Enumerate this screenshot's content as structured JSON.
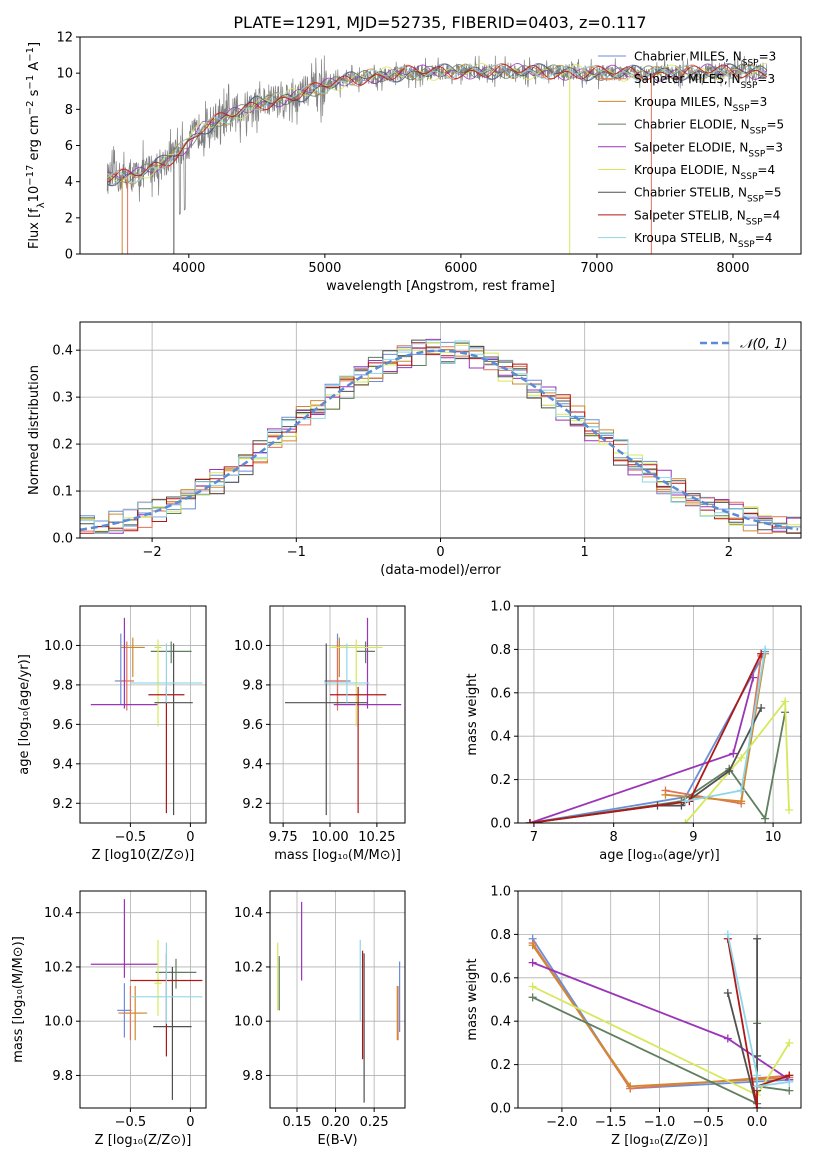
{
  "figure": {
    "title": "PLATE=1291, MJD=52735, FIBERID=0403, z=0.117"
  },
  "models": [
    {
      "name": "Chabrier MILES, N_SSP=3",
      "base": "Chabrier MILES, N",
      "sub": "SSP",
      "tail": "=3",
      "color": "#6b8ed8"
    },
    {
      "name": "Salpeter MILES, N_SSP=3",
      "base": "Salpeter MILES, N",
      "sub": "SSP",
      "tail": "=3",
      "color": "#e2725b"
    },
    {
      "name": "Kroupa MILES, N_SSP=3",
      "base": "Kroupa MILES, N",
      "sub": "SSP",
      "tail": "=3",
      "color": "#cf8a2e"
    },
    {
      "name": "Chabrier ELODIE, N_SSP=5",
      "base": "Chabrier ELODIE, N",
      "sub": "SSP",
      "tail": "=5",
      "color": "#5f7f5f"
    },
    {
      "name": "Salpeter ELODIE, N_SSP=3",
      "base": "Salpeter ELODIE, N",
      "sub": "SSP",
      "tail": "=3",
      "color": "#9b35b8"
    },
    {
      "name": "Kroupa ELODIE, N_SSP=4",
      "base": "Kroupa ELODIE, N",
      "sub": "SSP",
      "tail": "=4",
      "color": "#d6e85a"
    },
    {
      "name": "Chabrier STELIB, N_SSP=5",
      "base": "Chabrier STELIB, N",
      "sub": "SSP",
      "tail": "=5",
      "color": "#505050"
    },
    {
      "name": "Salpeter STELIB, N_SSP=4",
      "base": "Salpeter STELIB, N",
      "sub": "SSP",
      "tail": "=4",
      "color": "#b01818"
    },
    {
      "name": "Kroupa STELIB, N_SSP=4",
      "base": "Kroupa STELIB, N",
      "sub": "SSP",
      "tail": "=4",
      "color": "#8fd6e6"
    }
  ],
  "chart_data": [
    {
      "type": "line",
      "id": "spectrum",
      "xlabel": "wavelength [Angstrom, rest frame]",
      "ylabel_base": "Flux [f",
      "ylabel_sub": "λ",
      "ylabel_mid": "10",
      "ylabel_sup1": "−17",
      "ylabel_end": " erg cm",
      "ylabel_sup2": "−2",
      "ylabel_end2": " s",
      "ylabel_sup3": "−1",
      "ylabel_end3": " A",
      "ylabel_sup4": "−1",
      "ylabel_close": "]",
      "xlim": [
        3200,
        8500
      ],
      "ylim": [
        0,
        12
      ],
      "xticks": [
        4000,
        5000,
        6000,
        7000,
        8000
      ],
      "yticks": [
        0,
        2,
        4,
        6,
        8,
        10,
        12
      ],
      "data_color": "#808080",
      "continuum": [
        [
          3400,
          4.2
        ],
        [
          3600,
          4.3
        ],
        [
          3800,
          5.0
        ],
        [
          3950,
          5.8
        ],
        [
          4100,
          7.0
        ],
        [
          4300,
          7.6
        ],
        [
          4500,
          8.3
        ],
        [
          4700,
          8.6
        ],
        [
          4900,
          9.0
        ],
        [
          5100,
          9.5
        ],
        [
          5300,
          9.8
        ],
        [
          5600,
          10.0
        ],
        [
          6000,
          10.1
        ],
        [
          6500,
          10.1
        ],
        [
          7000,
          10.0
        ],
        [
          7500,
          10.0
        ],
        [
          8000,
          10.1
        ],
        [
          8250,
          10.1
        ]
      ],
      "grid": false,
      "legend": "upper right"
    },
    {
      "type": "bar",
      "id": "residuals",
      "xlabel": "(data-model)/error",
      "ylabel": "Normed distribution",
      "xlim": [
        -2.5,
        2.5
      ],
      "ylim": [
        0,
        0.46
      ],
      "xticks": [
        -2,
        -1,
        0,
        1,
        2
      ],
      "yticks": [
        0.0,
        0.1,
        0.2,
        0.3,
        0.4
      ],
      "legend_label": "𝒩(0, 1)",
      "gaussian": {
        "mean": 0,
        "sigma": 1,
        "color": "#5b8bd6"
      },
      "grid": true,
      "legend": "upper right"
    },
    {
      "type": "scatter",
      "id": "age-vs-z",
      "xlabel_base": "Z [log",
      "xlabel_sub": "10",
      "xlabel_end": "(Z/Z",
      "xlabel_sub2": "⊙",
      "xlabel_close": ")]",
      "ylabel": "age  [log₁₀(age/yr)]",
      "xlim": [
        -0.92,
        0.13
      ],
      "ylim": [
        9.1,
        10.2
      ],
      "xticks": [
        -0.5,
        0.0
      ],
      "yticks": [
        9.2,
        9.4,
        9.6,
        9.8,
        10.0
      ],
      "points": [
        {
          "x": -0.58,
          "y": 9.82,
          "xerr": 0.05,
          "yerr_lo": 0.12,
          "yerr_hi": 0.24
        },
        {
          "x": -0.53,
          "y": 9.82,
          "xerr": 0.06,
          "yerr_lo": 0.15,
          "yerr_hi": 0.2
        },
        {
          "x": -0.48,
          "y": 9.99,
          "xerr": 0.1,
          "yerr_lo": 0.15,
          "yerr_hi": 0.05
        },
        {
          "x": -0.16,
          "y": 9.97,
          "xerr": 0.17,
          "yerr_lo": 0.06,
          "yerr_hi": 0.05
        },
        {
          "x": -0.55,
          "y": 9.7,
          "xerr": 0.28,
          "yerr_lo": 0.02,
          "yerr_hi": 0.44
        },
        {
          "x": -0.27,
          "y": 9.99,
          "xerr": 0.03,
          "yerr_lo": 0.4,
          "yerr_hi": 0.04
        },
        {
          "x": -0.14,
          "y": 9.71,
          "xerr": 0.16,
          "yerr_lo": 0.57,
          "yerr_hi": 0.3
        },
        {
          "x": -0.2,
          "y": 9.75,
          "xerr": 0.15,
          "yerr_lo": 0.6,
          "yerr_hi": 0.04
        },
        {
          "x": -0.2,
          "y": 9.81,
          "xerr": 0.3,
          "yerr_lo": 0.1,
          "yerr_hi": 0.2
        }
      ]
    },
    {
      "type": "scatter",
      "id": "age-vs-mass",
      "xlabel": "mass [log₁₀(M/M⊙)]",
      "ylabel": "",
      "xlim": [
        9.68,
        10.4
      ],
      "ylim": [
        9.1,
        10.2
      ],
      "xticks": [
        9.75,
        10.0,
        10.25
      ],
      "xticklabels": [
        "9.75",
        "10.00",
        "10.25"
      ],
      "yticks": [
        9.2,
        9.4,
        9.6,
        9.8,
        10.0
      ],
      "points": [
        {
          "x": 10.04,
          "y": 9.82,
          "xerr": 0.07,
          "yerr_lo": 0.12,
          "yerr_hi": 0.24
        },
        {
          "x": 10.04,
          "y": 9.82,
          "xerr": 0.05,
          "yerr_lo": 0.15,
          "yerr_hi": 0.2
        },
        {
          "x": 10.05,
          "y": 9.99,
          "xerr": 0.04,
          "yerr_lo": 0.15,
          "yerr_hi": 0.05
        },
        {
          "x": 10.19,
          "y": 9.97,
          "xerr": 0.05,
          "yerr_lo": 0.06,
          "yerr_hi": 0.05
        },
        {
          "x": 10.2,
          "y": 9.7,
          "xerr": 0.18,
          "yerr_lo": 0.02,
          "yerr_hi": 0.44
        },
        {
          "x": 10.14,
          "y": 9.99,
          "xerr": 0.14,
          "yerr_lo": 0.4,
          "yerr_hi": 0.04
        },
        {
          "x": 9.98,
          "y": 9.71,
          "xerr": 0.22,
          "yerr_lo": 0.57,
          "yerr_hi": 0.3
        },
        {
          "x": 10.15,
          "y": 9.75,
          "xerr": 0.15,
          "yerr_lo": 0.6,
          "yerr_hi": 0.04
        },
        {
          "x": 10.09,
          "y": 9.81,
          "xerr": 0.12,
          "yerr_lo": 0.1,
          "yerr_hi": 0.2
        }
      ]
    },
    {
      "type": "line",
      "id": "weight-vs-age",
      "xlabel": "age  [log₁₀(age/yr)]",
      "ylabel": "mass weight",
      "xlim": [
        6.8,
        10.35
      ],
      "ylim": [
        0,
        1.0
      ],
      "xticks": [
        7,
        8,
        9,
        10
      ],
      "yticks": [
        0.0,
        0.2,
        0.4,
        0.6,
        0.8,
        1.0
      ],
      "grid": true,
      "series": [
        {
          "x": [
            6.95,
            8.9,
            9.9
          ],
          "y": [
            0.0,
            0.12,
            0.79
          ]
        },
        {
          "x": [
            8.65,
            9.6,
            9.85
          ],
          "y": [
            0.15,
            0.09,
            0.77
          ]
        },
        {
          "x": [
            8.65,
            9.6,
            9.9
          ],
          "y": [
            0.13,
            0.1,
            0.78
          ]
        },
        {
          "x": [
            6.95,
            8.85,
            9.45,
            9.9,
            10.15
          ],
          "y": [
            0.0,
            0.1,
            0.25,
            0.02,
            0.51
          ]
        },
        {
          "x": [
            6.95,
            9.5,
            9.75
          ],
          "y": [
            0.0,
            0.32,
            0.67
          ]
        },
        {
          "x": [
            8.9,
            9.6,
            10.15,
            10.2
          ],
          "y": [
            0.0,
            0.3,
            0.56,
            0.06
          ]
        },
        {
          "x": [
            6.95,
            8.55,
            8.85,
            9.45,
            9.85
          ],
          "y": [
            0.0,
            0.08,
            0.08,
            0.24,
            0.53
          ]
        },
        {
          "x": [
            6.95,
            8.95,
            9.85
          ],
          "y": [
            0.0,
            0.1,
            0.78
          ]
        },
        {
          "x": [
            8.9,
            9.6,
            9.9
          ],
          "y": [
            0.1,
            0.15,
            0.8
          ]
        }
      ]
    },
    {
      "type": "scatter",
      "id": "mass-vs-z",
      "xlabel": "Z [log₁₀(Z/Z⊙)]",
      "ylabel": "mass [log₁₀(M/M⊙)]",
      "xlim": [
        -0.92,
        0.13
      ],
      "ylim": [
        9.68,
        10.48
      ],
      "xticks": [
        -0.5,
        0.0
      ],
      "yticks": [
        9.8,
        10.0,
        10.2,
        10.4
      ],
      "points": [
        {
          "x": -0.55,
          "y": 10.04,
          "xerr": 0.06,
          "yerr_lo": 0.1,
          "yerr_hi": 0.1
        },
        {
          "x": -0.5,
          "y": 10.03,
          "xerr": 0.1,
          "yerr_lo": 0.1,
          "yerr_hi": 0.1
        },
        {
          "x": -0.46,
          "y": 10.03,
          "xerr": 0.1,
          "yerr_lo": 0.1,
          "yerr_hi": 0.1
        },
        {
          "x": -0.12,
          "y": 10.18,
          "xerr": 0.17,
          "yerr_lo": 0.06,
          "yerr_hi": 0.05
        },
        {
          "x": -0.55,
          "y": 10.21,
          "xerr": 0.28,
          "yerr_lo": 0.05,
          "yerr_hi": 0.24
        },
        {
          "x": -0.27,
          "y": 10.14,
          "xerr": 0.03,
          "yerr_lo": 0.12,
          "yerr_hi": 0.16
        },
        {
          "x": -0.15,
          "y": 9.98,
          "xerr": 0.16,
          "yerr_lo": 0.27,
          "yerr_hi": 0.22
        },
        {
          "x": -0.2,
          "y": 10.15,
          "xerr": 0.3,
          "yerr_lo": 0.28,
          "yerr_hi": 0.1
        },
        {
          "x": -0.2,
          "y": 10.09,
          "xerr": 0.3,
          "yerr_lo": 0.1,
          "yerr_hi": 0.2
        }
      ]
    },
    {
      "type": "scatter",
      "id": "mass-vs-ebv",
      "xlabel": "E(B-V)",
      "ylabel": "",
      "xlim": [
        0.115,
        0.29
      ],
      "ylim": [
        9.68,
        10.48
      ],
      "xticks": [
        0.15,
        0.2,
        0.25
      ],
      "xticklabels": [
        "0.15",
        "0.20",
        "0.25"
      ],
      "yticks": [
        9.8,
        10.0,
        10.2,
        10.4
      ],
      "points": [
        {
          "x": 0.283,
          "y": 10.04,
          "yerr_lo": 0.08,
          "yerr_hi": 0.18
        },
        {
          "x": 0.281,
          "y": 10.03,
          "yerr_lo": 0.1,
          "yerr_hi": 0.1
        },
        {
          "x": 0.28,
          "y": 10.03,
          "yerr_lo": 0.1,
          "yerr_hi": 0.1
        },
        {
          "x": 0.127,
          "y": 10.14,
          "yerr_lo": 0.1,
          "yerr_hi": 0.1
        },
        {
          "x": 0.156,
          "y": 10.29,
          "yerr_lo": 0.14,
          "yerr_hi": 0.15
        },
        {
          "x": 0.125,
          "y": 10.16,
          "yerr_lo": 0.12,
          "yerr_hi": 0.13
        },
        {
          "x": 0.237,
          "y": 9.95,
          "yerr_lo": 0.25,
          "yerr_hi": 0.3
        },
        {
          "x": 0.235,
          "y": 10.06,
          "yerr_lo": 0.2,
          "yerr_hi": 0.2
        },
        {
          "x": 0.232,
          "y": 10.15,
          "yerr_lo": 0.15,
          "yerr_hi": 0.15
        }
      ]
    },
    {
      "type": "line",
      "id": "weight-vs-z",
      "xlabel": "Z [log₁₀(Z/Z⊙)]",
      "ylabel": "mass weight",
      "xlim": [
        -2.45,
        0.45
      ],
      "ylim": [
        0,
        1.0
      ],
      "xticks": [
        -2.0,
        -1.5,
        -1.0,
        -0.5,
        0.0
      ],
      "xticklabels": [
        "−2.0",
        "−1.5",
        "−1.0",
        "−0.5",
        "0.0"
      ],
      "yticks": [
        0.0,
        0.2,
        0.4,
        0.6,
        0.8,
        1.0
      ],
      "grid": true,
      "series": [
        {
          "x": [
            -2.3,
            -1.3,
            0.33
          ],
          "y": [
            0.78,
            0.09,
            0.13
          ]
        },
        {
          "x": [
            -2.3,
            -1.3,
            0.33
          ],
          "y": [
            0.76,
            0.09,
            0.15
          ]
        },
        {
          "x": [
            -2.3,
            -1.3,
            0.33
          ],
          "y": [
            0.75,
            0.1,
            0.14
          ]
        },
        {
          "x": [
            -2.3,
            0.0,
            0.0,
            0.0,
            0.33
          ],
          "y": [
            0.51,
            0.02,
            0.39,
            0.1,
            0.08
          ]
        },
        {
          "x": [
            -2.3,
            -0.3,
            0.33
          ],
          "y": [
            0.67,
            0.32,
            0.13
          ]
        },
        {
          "x": [
            -2.3,
            0.0,
            0.33
          ],
          "y": [
            0.56,
            0.06,
            0.3
          ]
        },
        {
          "x": [
            -0.3,
            0.0,
            0.0,
            0.0,
            0.0
          ],
          "y": [
            0.53,
            0.0,
            0.24,
            0.08,
            0.78
          ]
        },
        {
          "x": [
            -0.3,
            0.0,
            0.0,
            0.33
          ],
          "y": [
            0.78,
            0.0,
            0.1,
            0.15
          ]
        },
        {
          "x": [
            -0.3,
            0.0,
            0.0,
            0.33
          ],
          "y": [
            0.8,
            0.15,
            0.1,
            0.12
          ]
        }
      ]
    }
  ]
}
